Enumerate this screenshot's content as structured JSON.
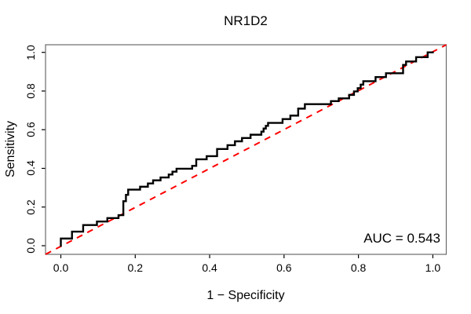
{
  "title": "NR1D2",
  "axes": {
    "xlabel": "1 − Specificity",
    "ylabel": "Sensitivity",
    "x_ticks": [
      "0.0",
      "0.2",
      "0.4",
      "0.6",
      "0.8",
      "1.0"
    ],
    "y_ticks": [
      "0.0",
      "0.2",
      "0.4",
      "0.6",
      "0.8",
      "1.0"
    ]
  },
  "annotation": {
    "auc_label": "AUC = 0.543"
  },
  "colors": {
    "curve": "#000000",
    "diagonal": "#ff0000",
    "box": "#6b6b6b",
    "tick": "#000000"
  },
  "chart_data": {
    "type": "line",
    "title": "NR1D2",
    "xlabel": "1 − Specificity",
    "ylabel": "Sensitivity",
    "xlim": [
      0,
      1
    ],
    "ylim": [
      0,
      1
    ],
    "x_tick_values": [
      0,
      0.2,
      0.4,
      0.6,
      0.8,
      1.0
    ],
    "y_tick_values": [
      0,
      0.2,
      0.4,
      0.6,
      0.8,
      1.0
    ],
    "grid": false,
    "legend": "none",
    "auc": 0.543,
    "series": [
      {
        "name": "ROC curve",
        "style": "step-solid",
        "color": "#000000",
        "points": [
          [
            0,
            0
          ],
          [
            0,
            0.037
          ],
          [
            0.03,
            0.037
          ],
          [
            0.03,
            0.073
          ],
          [
            0.06,
            0.073
          ],
          [
            0.06,
            0.107
          ],
          [
            0.097,
            0.107
          ],
          [
            0.097,
            0.125
          ],
          [
            0.125,
            0.125
          ],
          [
            0.125,
            0.143
          ],
          [
            0.155,
            0.143
          ],
          [
            0.155,
            0.158
          ],
          [
            0.168,
            0.158
          ],
          [
            0.168,
            0.23
          ],
          [
            0.175,
            0.23
          ],
          [
            0.175,
            0.263
          ],
          [
            0.181,
            0.263
          ],
          [
            0.181,
            0.29
          ],
          [
            0.213,
            0.29
          ],
          [
            0.213,
            0.305
          ],
          [
            0.234,
            0.305
          ],
          [
            0.234,
            0.322
          ],
          [
            0.248,
            0.322
          ],
          [
            0.248,
            0.338
          ],
          [
            0.268,
            0.338
          ],
          [
            0.268,
            0.353
          ],
          [
            0.29,
            0.353
          ],
          [
            0.29,
            0.368
          ],
          [
            0.3,
            0.368
          ],
          [
            0.3,
            0.383
          ],
          [
            0.311,
            0.383
          ],
          [
            0.311,
            0.398
          ],
          [
            0.353,
            0.398
          ],
          [
            0.353,
            0.413
          ],
          [
            0.364,
            0.413
          ],
          [
            0.364,
            0.447
          ],
          [
            0.392,
            0.447
          ],
          [
            0.392,
            0.463
          ],
          [
            0.42,
            0.463
          ],
          [
            0.42,
            0.5
          ],
          [
            0.448,
            0.5
          ],
          [
            0.448,
            0.52
          ],
          [
            0.468,
            0.52
          ],
          [
            0.468,
            0.54
          ],
          [
            0.487,
            0.54
          ],
          [
            0.487,
            0.557
          ],
          [
            0.51,
            0.557
          ],
          [
            0.51,
            0.574
          ],
          [
            0.539,
            0.574
          ],
          [
            0.539,
            0.59
          ],
          [
            0.545,
            0.59
          ],
          [
            0.545,
            0.606
          ],
          [
            0.551,
            0.606
          ],
          [
            0.551,
            0.62
          ],
          [
            0.557,
            0.62
          ],
          [
            0.557,
            0.635
          ],
          [
            0.596,
            0.635
          ],
          [
            0.596,
            0.655
          ],
          [
            0.617,
            0.655
          ],
          [
            0.617,
            0.673
          ],
          [
            0.638,
            0.673
          ],
          [
            0.638,
            0.709
          ],
          [
            0.656,
            0.709
          ],
          [
            0.656,
            0.732
          ],
          [
            0.726,
            0.732
          ],
          [
            0.726,
            0.748
          ],
          [
            0.747,
            0.748
          ],
          [
            0.747,
            0.762
          ],
          [
            0.775,
            0.762
          ],
          [
            0.775,
            0.78
          ],
          [
            0.788,
            0.78
          ],
          [
            0.788,
            0.798
          ],
          [
            0.798,
            0.798
          ],
          [
            0.798,
            0.815
          ],
          [
            0.806,
            0.815
          ],
          [
            0.806,
            0.833
          ],
          [
            0.813,
            0.833
          ],
          [
            0.813,
            0.851
          ],
          [
            0.846,
            0.851
          ],
          [
            0.846,
            0.872
          ],
          [
            0.874,
            0.872
          ],
          [
            0.874,
            0.892
          ],
          [
            0.92,
            0.892
          ],
          [
            0.92,
            0.935
          ],
          [
            0.928,
            0.935
          ],
          [
            0.928,
            0.953
          ],
          [
            0.955,
            0.953
          ],
          [
            0.955,
            0.975
          ],
          [
            0.986,
            0.975
          ],
          [
            0.986,
            1
          ],
          [
            1,
            1
          ]
        ]
      },
      {
        "name": "chance diagonal",
        "style": "dashed-line",
        "color": "#ff0000",
        "points": [
          [
            0,
            0
          ],
          [
            1,
            1
          ]
        ]
      }
    ]
  }
}
